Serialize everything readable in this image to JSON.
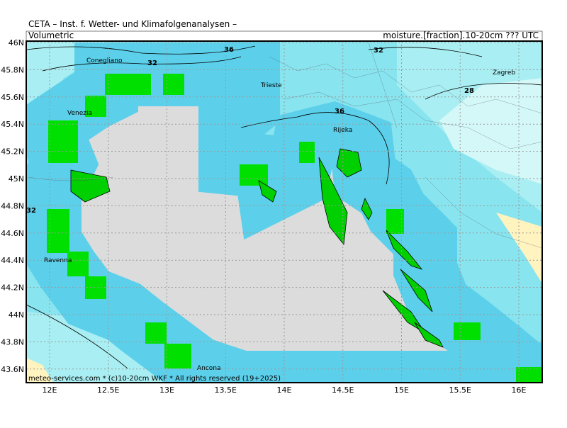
{
  "header": {
    "title": "CETA – Inst. f. Wetter- und Klimafolgenanalysen –",
    "left_label": "Volumetric",
    "right_label": "moisture.[fraction].10-20cm ??? UTC"
  },
  "map": {
    "lat_ticks": [
      {
        "value": 46,
        "label": "46N"
      },
      {
        "value": 45.8,
        "label": "45.8N"
      },
      {
        "value": 45.6,
        "label": "45.6N"
      },
      {
        "value": 45.4,
        "label": "45.4N"
      },
      {
        "value": 45.2,
        "label": "45.2N"
      },
      {
        "value": 45,
        "label": "45N"
      },
      {
        "value": 44.8,
        "label": "44.8N"
      },
      {
        "value": 44.6,
        "label": "44.6N"
      },
      {
        "value": 44.4,
        "label": "44.4N"
      },
      {
        "value": 44.2,
        "label": "44.2N"
      },
      {
        "value": 44,
        "label": "44N"
      },
      {
        "value": 43.8,
        "label": "43.8N"
      },
      {
        "value": 43.6,
        "label": "43.6N"
      }
    ],
    "lon_ticks": [
      {
        "value": 12,
        "label": "12E"
      },
      {
        "value": 12.5,
        "label": "12.5E"
      },
      {
        "value": 13,
        "label": "13E"
      },
      {
        "value": 13.5,
        "label": "13.5E"
      },
      {
        "value": 14,
        "label": "14E"
      },
      {
        "value": 14.5,
        "label": "14.5E"
      },
      {
        "value": 15,
        "label": "15E"
      },
      {
        "value": 15.5,
        "label": "15.5E"
      },
      {
        "value": 16,
        "label": "16E"
      }
    ],
    "cities": [
      "Conegliano",
      "Venezia",
      "Ravenna",
      "Trieste",
      "Rijeka",
      "Zagreb",
      "Ancona"
    ],
    "contour_labels": [
      "32",
      "36",
      "32",
      "28",
      "36",
      "32"
    ]
  },
  "footer": {
    "text": "meteo-services.com * (c)10-20cm WKF * All rights reserved (19+2025)"
  }
}
